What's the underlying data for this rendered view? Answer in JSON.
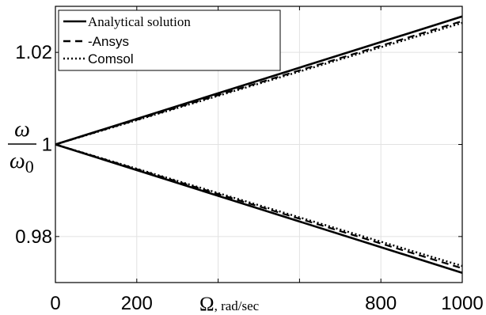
{
  "chart_data": {
    "type": "line",
    "xlabel_symbol": "Ω",
    "xlabel_unit": ", rad/sec",
    "ylabel_num": "ω",
    "ylabel_den": "ω",
    "ylabel_den_sub": "0",
    "xlim": [
      0,
      1000
    ],
    "ylim": [
      0.97,
      1.03
    ],
    "xticks": [
      0,
      200,
      800,
      1000
    ],
    "xtick_labels": [
      "0",
      "200",
      "800",
      "1000"
    ],
    "xgrid": [
      200,
      400,
      600,
      800
    ],
    "yticks": [
      0.98,
      1.0,
      1.02
    ],
    "ytick_labels": [
      "0.98",
      "1",
      "1.02"
    ],
    "grid": true,
    "legend_position": "top-left",
    "series": [
      {
        "name": "Analytical solution",
        "style": "solid",
        "branches": [
          {
            "x": [
              0,
              1000
            ],
            "y": [
              1.0,
              1.0278
            ]
          },
          {
            "x": [
              0,
              1000
            ],
            "y": [
              1.0,
              0.9721
            ]
          }
        ]
      },
      {
        "name": "-Ansys",
        "style": "dashed",
        "branches": [
          {
            "x": [
              0,
              1000
            ],
            "y": [
              1.0,
              1.0268
            ]
          },
          {
            "x": [
              0,
              1000
            ],
            "y": [
              1.0,
              0.9731
            ]
          }
        ]
      },
      {
        "name": "Comsol",
        "style": "dotted",
        "branches": [
          {
            "x": [
              0,
              1000
            ],
            "y": [
              1.0,
              1.0264
            ]
          },
          {
            "x": [
              0,
              1000
            ],
            "y": [
              1.0,
              0.9736
            ]
          }
        ]
      }
    ]
  }
}
